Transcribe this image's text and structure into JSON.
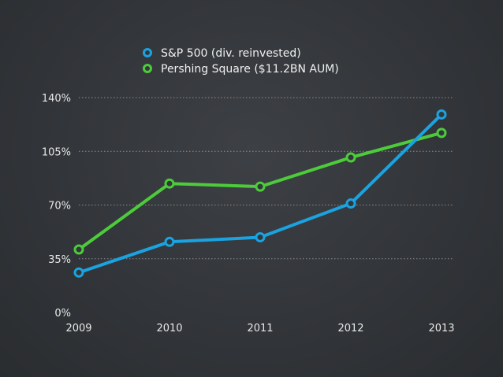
{
  "chart_data": {
    "type": "line",
    "title": "",
    "xlabel": "",
    "ylabel": "",
    "categories": [
      "2009",
      "2010",
      "2011",
      "2012",
      "2013"
    ],
    "y_ticks": [
      "0%",
      "35%",
      "70%",
      "105%",
      "140%"
    ],
    "ylim": [
      0,
      140
    ],
    "grid": true,
    "legend_position": "top-center",
    "series": [
      {
        "name": "S&P 500 (div. reinvested)",
        "color": "#1aa3e0",
        "values": [
          26,
          46,
          49,
          71,
          129
        ]
      },
      {
        "name": "Pershing Square ($11.2BN AUM)",
        "color": "#4ccc3a",
        "values": [
          41,
          84,
          82,
          101,
          117
        ]
      }
    ]
  }
}
